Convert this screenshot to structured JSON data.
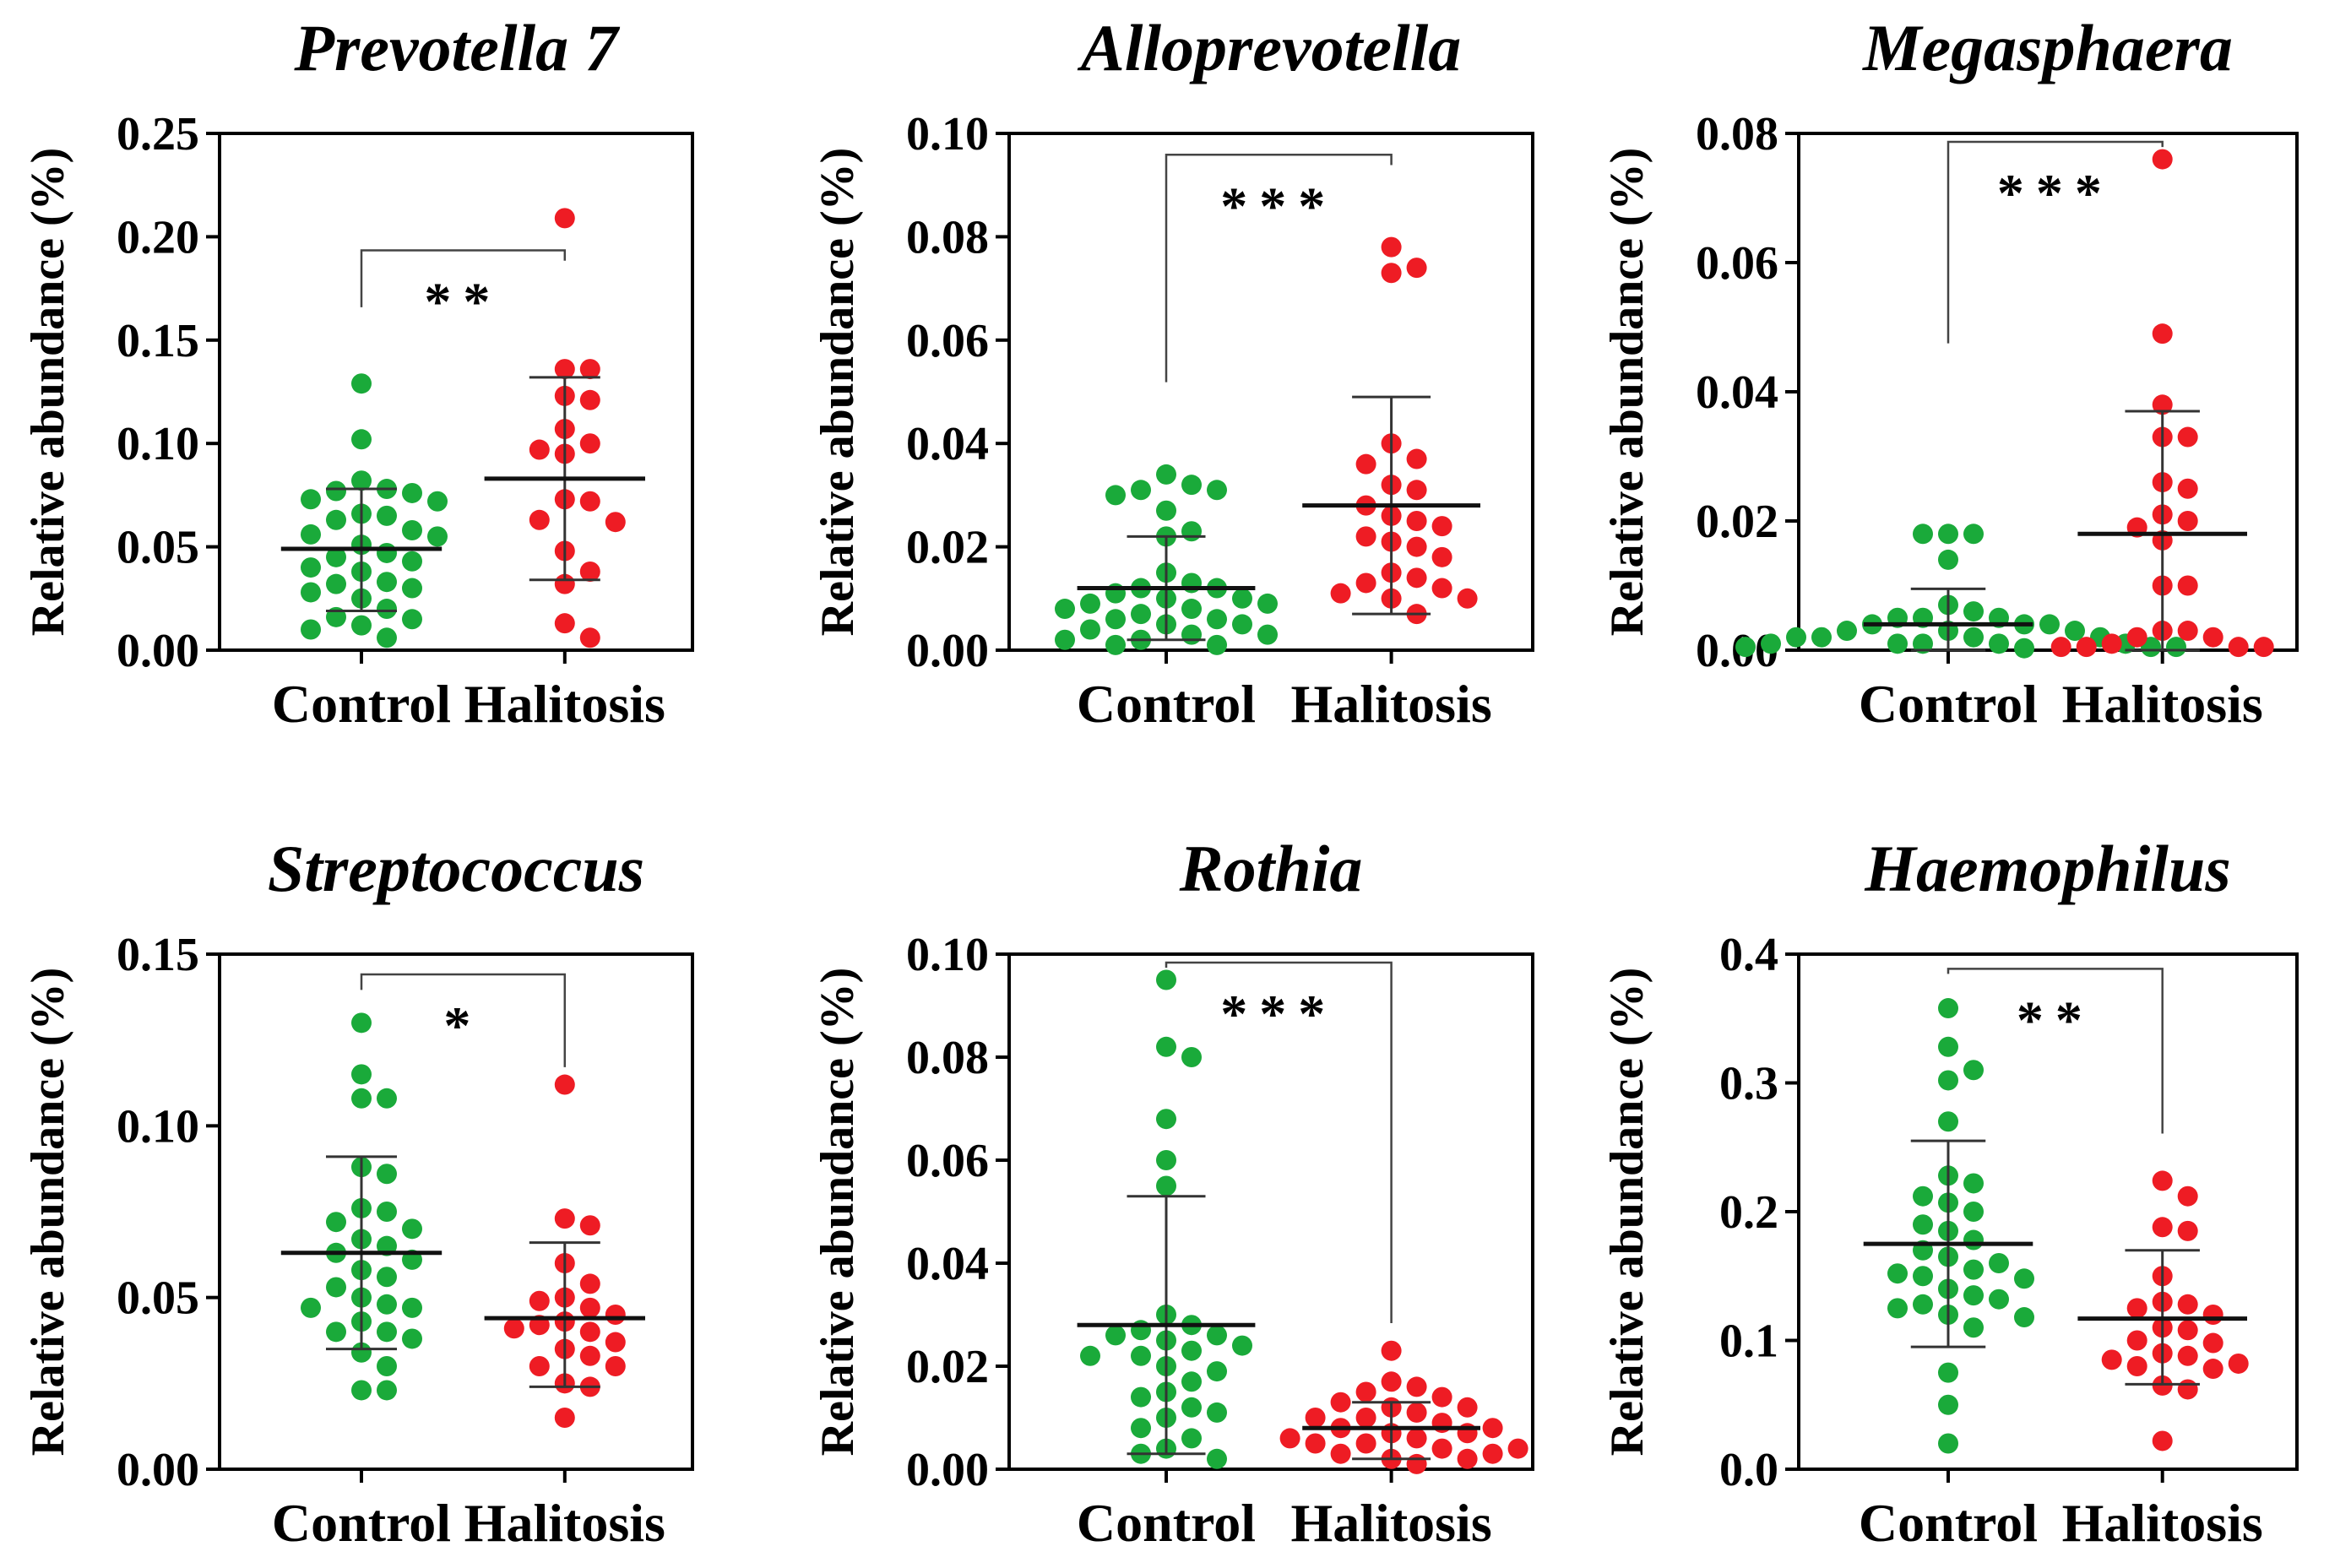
{
  "colors": {
    "control": "#1aaa3a",
    "halitosis": "#ee1c24",
    "axis": "#000000"
  },
  "chart_data": [
    {
      "type": "scatter",
      "title": "Prevotella 7",
      "ylabel": "Relative abundance (%)",
      "ylim": [
        0,
        0.25
      ],
      "yticks": [
        "0.00",
        "0.05",
        "0.10",
        "0.15",
        "0.20",
        "0.25"
      ],
      "categories": [
        "Control",
        "Halitosis"
      ],
      "significance": "**",
      "series": [
        {
          "name": "Control",
          "mean": 0.049,
          "sd_low": 0.019,
          "sd_high": 0.078,
          "values": [
            0.129,
            0.102,
            0.082,
            0.078,
            0.077,
            0.076,
            0.073,
            0.072,
            0.066,
            0.065,
            0.063,
            0.058,
            0.056,
            0.055,
            0.051,
            0.047,
            0.045,
            0.043,
            0.04,
            0.038,
            0.033,
            0.032,
            0.03,
            0.028,
            0.025,
            0.02,
            0.016,
            0.015,
            0.012,
            0.01,
            0.006
          ]
        },
        {
          "name": "Halitosis",
          "mean": 0.083,
          "sd_low": 0.034,
          "sd_high": 0.132,
          "values": [
            0.209,
            0.136,
            0.136,
            0.123,
            0.121,
            0.107,
            0.1,
            0.097,
            0.095,
            0.073,
            0.072,
            0.063,
            0.062,
            0.048,
            0.038,
            0.032,
            0.013,
            0.006
          ]
        }
      ]
    },
    {
      "type": "scatter",
      "title": "Alloprevotella",
      "ylabel": "Relative abundance (%)",
      "ylim": [
        0,
        0.1
      ],
      "yticks": [
        "0.00",
        "0.02",
        "0.04",
        "0.06",
        "0.08",
        "0.10"
      ],
      "categories": [
        "Control",
        "Halitosis"
      ],
      "significance": "***",
      "series": [
        {
          "name": "Control",
          "mean": 0.012,
          "sd_low": 0.002,
          "sd_high": 0.022,
          "values": [
            0.034,
            0.032,
            0.031,
            0.031,
            0.03,
            0.027,
            0.023,
            0.022,
            0.015,
            0.013,
            0.012,
            0.012,
            0.011,
            0.01,
            0.01,
            0.009,
            0.009,
            0.008,
            0.008,
            0.007,
            0.006,
            0.006,
            0.005,
            0.005,
            0.004,
            0.003,
            0.003,
            0.002,
            0.002,
            0.001,
            0.001
          ]
        },
        {
          "name": "Halitosis",
          "mean": 0.028,
          "sd_low": 0.007,
          "sd_high": 0.049,
          "values": [
            0.078,
            0.074,
            0.073,
            0.04,
            0.037,
            0.036,
            0.032,
            0.031,
            0.028,
            0.026,
            0.025,
            0.024,
            0.022,
            0.021,
            0.02,
            0.018,
            0.015,
            0.014,
            0.013,
            0.012,
            0.011,
            0.01,
            0.01,
            0.007
          ]
        }
      ]
    },
    {
      "type": "scatter",
      "title": "Megasphaera",
      "ylabel": "Relative abundance (%)",
      "ylim": [
        0,
        0.08
      ],
      "yticks": [
        "0.00",
        "0.02",
        "0.04",
        "0.06",
        "0.08"
      ],
      "categories": [
        "Control",
        "Halitosis"
      ],
      "significance": "***",
      "series": [
        {
          "name": "Control",
          "mean": 0.004,
          "sd_low": 0.0,
          "sd_high": 0.0095,
          "values": [
            0.018,
            0.018,
            0.018,
            0.014,
            0.007,
            0.006,
            0.005,
            0.005,
            0.005,
            0.004,
            0.004,
            0.004,
            0.003,
            0.003,
            0.003,
            0.002,
            0.002,
            0.002,
            0.002,
            0.001,
            0.001,
            0.001,
            0.001,
            0.001,
            0.0005,
            0.0005,
            0.0005,
            0.0003
          ]
        },
        {
          "name": "Halitosis",
          "mean": 0.018,
          "sd_low": 0.0,
          "sd_high": 0.037,
          "values": [
            0.076,
            0.049,
            0.038,
            0.033,
            0.033,
            0.026,
            0.025,
            0.021,
            0.02,
            0.019,
            0.017,
            0.01,
            0.01,
            0.003,
            0.003,
            0.002,
            0.002,
            0.001,
            0.0005,
            0.0005,
            0.0005,
            0.0005
          ]
        }
      ]
    },
    {
      "type": "scatter",
      "title": "Streptococcus",
      "ylabel": "Relative abundance (%)",
      "ylim": [
        0,
        0.15
      ],
      "yticks": [
        "0.00",
        "0.05",
        "0.10",
        "0.15"
      ],
      "categories": [
        "Control",
        "Halitosis"
      ],
      "significance": "*",
      "series": [
        {
          "name": "Control",
          "mean": 0.063,
          "sd_low": 0.035,
          "sd_high": 0.091,
          "values": [
            0.13,
            0.115,
            0.108,
            0.108,
            0.088,
            0.086,
            0.076,
            0.075,
            0.072,
            0.07,
            0.067,
            0.065,
            0.063,
            0.061,
            0.058,
            0.056,
            0.053,
            0.05,
            0.048,
            0.047,
            0.047,
            0.043,
            0.04,
            0.04,
            0.038,
            0.034,
            0.03,
            0.023,
            0.023
          ]
        },
        {
          "name": "Halitosis",
          "mean": 0.044,
          "sd_low": 0.024,
          "sd_high": 0.066,
          "values": [
            0.112,
            0.073,
            0.071,
            0.06,
            0.054,
            0.05,
            0.049,
            0.047,
            0.045,
            0.043,
            0.042,
            0.041,
            0.04,
            0.037,
            0.035,
            0.033,
            0.03,
            0.03,
            0.025,
            0.024,
            0.015
          ]
        }
      ]
    },
    {
      "type": "scatter",
      "title": "Rothia",
      "ylabel": "Relative abundance (%)",
      "ylim": [
        0,
        0.1
      ],
      "yticks": [
        "0.00",
        "0.02",
        "0.04",
        "0.06",
        "0.08",
        "0.10"
      ],
      "categories": [
        "Control",
        "Halitosis"
      ],
      "significance": "***",
      "series": [
        {
          "name": "Control",
          "mean": 0.028,
          "sd_low": 0.003,
          "sd_high": 0.053,
          "values": [
            0.095,
            0.082,
            0.08,
            0.068,
            0.06,
            0.055,
            0.03,
            0.028,
            0.027,
            0.026,
            0.026,
            0.025,
            0.024,
            0.023,
            0.022,
            0.022,
            0.02,
            0.019,
            0.017,
            0.015,
            0.014,
            0.012,
            0.011,
            0.01,
            0.008,
            0.006,
            0.004,
            0.003,
            0.002
          ]
        },
        {
          "name": "Halitosis",
          "mean": 0.008,
          "sd_low": 0.002,
          "sd_high": 0.013,
          "values": [
            0.023,
            0.017,
            0.016,
            0.015,
            0.014,
            0.013,
            0.012,
            0.012,
            0.011,
            0.01,
            0.01,
            0.009,
            0.008,
            0.008,
            0.007,
            0.007,
            0.006,
            0.006,
            0.005,
            0.005,
            0.004,
            0.004,
            0.003,
            0.003,
            0.002,
            0.002,
            0.001
          ]
        }
      ]
    },
    {
      "type": "scatter",
      "title": "Haemophilus",
      "ylabel": "Relative abundance (%)",
      "ylim": [
        0,
        0.4
      ],
      "yticks": [
        "0.0",
        "0.1",
        "0.2",
        "0.3",
        "0.4"
      ],
      "categories": [
        "Control",
        "Halitosis"
      ],
      "significance": "**",
      "series": [
        {
          "name": "Control",
          "mean": 0.175,
          "sd_low": 0.095,
          "sd_high": 0.255,
          "values": [
            0.358,
            0.328,
            0.31,
            0.302,
            0.27,
            0.228,
            0.222,
            0.212,
            0.207,
            0.2,
            0.19,
            0.185,
            0.178,
            0.17,
            0.165,
            0.16,
            0.155,
            0.152,
            0.15,
            0.148,
            0.14,
            0.135,
            0.132,
            0.128,
            0.125,
            0.12,
            0.118,
            0.11,
            0.075,
            0.05,
            0.02
          ]
        },
        {
          "name": "Halitosis",
          "mean": 0.117,
          "sd_low": 0.066,
          "sd_high": 0.17,
          "values": [
            0.224,
            0.212,
            0.188,
            0.185,
            0.15,
            0.13,
            0.128,
            0.125,
            0.12,
            0.11,
            0.108,
            0.1,
            0.098,
            0.09,
            0.088,
            0.085,
            0.082,
            0.08,
            0.078,
            0.065,
            0.062,
            0.022
          ]
        }
      ]
    }
  ]
}
